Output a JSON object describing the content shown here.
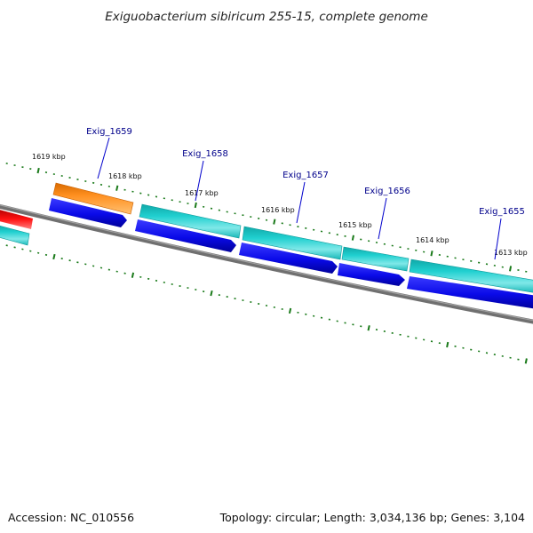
{
  "title": "Exiguobacterium sibiricum 255-15, complete genome",
  "accession": "Accession: NC_010556",
  "summary": "Topology: circular; Length: 3,034,136 bp; Genes: 3,104",
  "colors": {
    "backbone": "#808080",
    "tick": "#1a7a1a",
    "cds_forward": "#1010ee",
    "gene_reverse": "#16c0c0",
    "gene_orange": "#ff8c1a",
    "gene_red": "#ee0000",
    "label_line": "#0000cc"
  },
  "kbp_labels": [
    {
      "id": "kbp-1619",
      "text": "1619 kbp"
    },
    {
      "id": "kbp-1618",
      "text": "1618 kbp"
    },
    {
      "id": "kbp-1617",
      "text": "1617 kbp"
    },
    {
      "id": "kbp-1616",
      "text": "1616 kbp"
    },
    {
      "id": "kbp-1615",
      "text": "1615 kbp"
    },
    {
      "id": "kbp-1614",
      "text": "1614 kbp"
    },
    {
      "id": "kbp-1613",
      "text": "1613 kbp"
    }
  ],
  "gene_labels": [
    {
      "id": "exig-1659",
      "text": "Exig_1659"
    },
    {
      "id": "exig-1658",
      "text": "Exig_1658"
    },
    {
      "id": "exig-1657",
      "text": "Exig_1657"
    },
    {
      "id": "exig-1656",
      "text": "Exig_1656"
    },
    {
      "id": "exig-1655",
      "text": "Exig_1655"
    }
  ]
}
